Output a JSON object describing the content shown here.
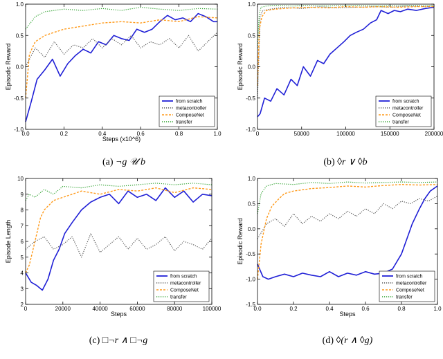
{
  "chart_data": [
    {
      "type": "line",
      "caption_id": "(a)",
      "caption_formula": "¬g 𝒰 b",
      "xlabel": "Steps (x10^6)",
      "ylabel": "Episodic Reward",
      "xlim": [
        0.0,
        1.0
      ],
      "ylim": [
        -1.0,
        1.0
      ],
      "xticks": [
        "0.0",
        "0.2",
        "0.4",
        "0.6",
        "0.8",
        "1.0"
      ],
      "xtick_values": [
        0.0,
        0.2,
        0.4,
        0.6,
        0.8,
        1.0
      ],
      "yticks": [
        "-1.0",
        "-0.5",
        "0.0",
        "0.5",
        "1.0"
      ],
      "ytick_values": [
        -1.0,
        -0.5,
        0.0,
        0.5,
        1.0
      ],
      "legend_position": "lower-right",
      "series": [
        {
          "name": "from scratch",
          "color": "#1f1fd6",
          "style": "solid",
          "x": [
            0,
            0.03,
            0.06,
            0.1,
            0.14,
            0.18,
            0.22,
            0.26,
            0.3,
            0.34,
            0.38,
            0.42,
            0.46,
            0.5,
            0.54,
            0.58,
            0.62,
            0.66,
            0.7,
            0.74,
            0.78,
            0.82,
            0.86,
            0.9,
            0.94,
            0.98,
            1.0
          ],
          "y": [
            -0.88,
            -0.55,
            -0.2,
            -0.05,
            0.12,
            -0.15,
            0.05,
            0.18,
            0.28,
            0.22,
            0.4,
            0.35,
            0.5,
            0.45,
            0.42,
            0.6,
            0.55,
            0.6,
            0.72,
            0.82,
            0.75,
            0.78,
            0.72,
            0.85,
            0.8,
            0.72,
            0.72
          ]
        },
        {
          "name": "metacontroller",
          "color": "#555555",
          "style": "dotted",
          "x": [
            0,
            0.05,
            0.1,
            0.15,
            0.2,
            0.25,
            0.3,
            0.35,
            0.4,
            0.45,
            0.5,
            0.55,
            0.6,
            0.65,
            0.7,
            0.75,
            0.8,
            0.85,
            0.9,
            0.95,
            1.0
          ],
          "y": [
            0.0,
            0.3,
            0.15,
            0.4,
            0.2,
            0.35,
            0.3,
            0.45,
            0.3,
            0.45,
            0.35,
            0.5,
            0.3,
            0.4,
            0.35,
            0.45,
            0.3,
            0.5,
            0.25,
            0.4,
            0.55
          ]
        },
        {
          "name": "ComposeNet",
          "color": "#ff9a1a",
          "style": "dashed",
          "x": [
            0,
            0.02,
            0.05,
            0.1,
            0.15,
            0.2,
            0.3,
            0.4,
            0.5,
            0.6,
            0.7,
            0.8,
            0.9,
            1.0
          ],
          "y": [
            -0.5,
            0.2,
            0.4,
            0.5,
            0.55,
            0.6,
            0.65,
            0.7,
            0.72,
            0.7,
            0.75,
            0.72,
            0.8,
            0.78
          ]
        },
        {
          "name": "transfer",
          "color": "#2ca02c",
          "style": "dotted",
          "x": [
            0,
            0.05,
            0.1,
            0.2,
            0.3,
            0.4,
            0.5,
            0.6,
            0.7,
            0.8,
            0.9,
            1.0
          ],
          "y": [
            0.6,
            0.8,
            0.88,
            0.92,
            0.9,
            0.93,
            0.9,
            0.95,
            0.92,
            0.9,
            0.93,
            0.92
          ]
        }
      ]
    },
    {
      "type": "line",
      "caption_id": "(b)",
      "caption_formula": "◊r ∨ ◊b",
      "xlabel": "",
      "ylabel": "Episodic Reward",
      "xlim": [
        0,
        200000
      ],
      "ylim": [
        -1.0,
        1.0
      ],
      "xticks": [
        "0",
        "50000",
        "100000",
        "150000",
        "200000"
      ],
      "xtick_values": [
        0,
        50000,
        100000,
        150000,
        200000
      ],
      "yticks": [
        "-1.0",
        "-0.5",
        "0.0",
        "0.5",
        "1.0"
      ],
      "ytick_values": [
        -1.0,
        -0.5,
        0.0,
        0.5,
        1.0
      ],
      "legend_position": "lower-right",
      "series": [
        {
          "name": "from scratch",
          "color": "#1f1fd6",
          "style": "solid",
          "x": [
            0,
            3000,
            8000,
            15000,
            22000,
            30000,
            38000,
            45000,
            52000,
            60000,
            68000,
            75000,
            82000,
            90000,
            98000,
            105000,
            112000,
            120000,
            128000,
            135000,
            140000,
            148000,
            155000,
            162000,
            170000,
            180000,
            190000,
            200000
          ],
          "y": [
            -0.8,
            -0.75,
            -0.5,
            -0.55,
            -0.35,
            -0.45,
            -0.2,
            -0.3,
            0.0,
            -0.15,
            0.1,
            0.05,
            0.2,
            0.3,
            0.4,
            0.5,
            0.55,
            0.6,
            0.7,
            0.75,
            0.9,
            0.85,
            0.9,
            0.88,
            0.92,
            0.9,
            0.93,
            0.95
          ]
        },
        {
          "name": "metacontroller",
          "color": "#555555",
          "style": "dotted",
          "x": [
            0,
            3000,
            6000,
            15000,
            30000,
            50000,
            70000,
            90000,
            110000,
            130000,
            150000,
            170000,
            190000,
            200000
          ],
          "y": [
            -0.5,
            0.8,
            0.9,
            0.92,
            0.95,
            0.93,
            0.96,
            0.94,
            0.95,
            0.96,
            0.95,
            0.97,
            0.96,
            0.97
          ]
        },
        {
          "name": "ComposeNet",
          "color": "#ff9a1a",
          "style": "dashed",
          "x": [
            0,
            2000,
            5000,
            10000,
            20000,
            40000,
            60000,
            80000,
            100000,
            120000,
            140000,
            160000,
            180000,
            200000
          ],
          "y": [
            -0.3,
            0.6,
            0.8,
            0.9,
            0.92,
            0.94,
            0.95,
            0.94,
            0.96,
            0.95,
            0.96,
            0.95,
            0.96,
            0.96
          ]
        },
        {
          "name": "transfer",
          "color": "#2ca02c",
          "style": "dotted",
          "x": [
            0,
            2000,
            4000,
            10000,
            20000,
            40000,
            60000,
            80000,
            100000,
            120000,
            140000,
            160000,
            180000,
            200000
          ],
          "y": [
            0.3,
            0.85,
            0.95,
            0.97,
            0.98,
            0.97,
            0.98,
            0.97,
            0.98,
            0.98,
            0.97,
            0.98,
            0.98,
            0.98
          ]
        }
      ]
    },
    {
      "type": "line",
      "caption_id": "(c)",
      "caption_formula": "□¬r ∧ □¬g",
      "xlabel": "Steps",
      "ylabel": "Episode Length",
      "xlim": [
        0,
        100000
      ],
      "ylim": [
        2,
        10
      ],
      "xticks": [
        "0",
        "20000",
        "40000",
        "60000",
        "80000",
        "100000"
      ],
      "xtick_values": [
        0,
        20000,
        40000,
        60000,
        80000,
        100000
      ],
      "yticks": [
        "2",
        "3",
        "4",
        "5",
        "6",
        "7",
        "8",
        "9",
        "10"
      ],
      "ytick_values": [
        2,
        3,
        4,
        5,
        6,
        7,
        8,
        9,
        10
      ],
      "legend_position": "lower-right",
      "series": [
        {
          "name": "from scratch",
          "color": "#1f1fd6",
          "style": "solid",
          "x": [
            0,
            3000,
            6000,
            9000,
            12000,
            15000,
            18000,
            21000,
            25000,
            30000,
            35000,
            40000,
            45000,
            50000,
            55000,
            60000,
            65000,
            70000,
            75000,
            80000,
            85000,
            90000,
            95000,
            100000
          ],
          "y": [
            4.0,
            3.4,
            3.2,
            2.9,
            3.6,
            4.8,
            5.5,
            6.5,
            7.2,
            8.0,
            8.5,
            8.8,
            9.0,
            8.4,
            9.2,
            8.8,
            9.0,
            8.6,
            9.4,
            8.8,
            9.2,
            8.5,
            9.0,
            8.9
          ]
        },
        {
          "name": "metacontroller",
          "color": "#555555",
          "style": "dotted",
          "x": [
            0,
            5000,
            10000,
            15000,
            20000,
            25000,
            30000,
            35000,
            40000,
            45000,
            50000,
            55000,
            60000,
            65000,
            70000,
            75000,
            80000,
            85000,
            90000,
            95000,
            100000
          ],
          "y": [
            5.5,
            6.0,
            6.3,
            5.5,
            5.8,
            6.3,
            5.0,
            6.5,
            5.3,
            5.8,
            6.3,
            5.5,
            6.2,
            5.5,
            5.8,
            6.3,
            5.4,
            6.0,
            5.8,
            5.5,
            6.2
          ]
        },
        {
          "name": "ComposeNet",
          "color": "#ff9a1a",
          "style": "dashed",
          "x": [
            0,
            2000,
            5000,
            8000,
            10000,
            15000,
            20000,
            30000,
            40000,
            50000,
            60000,
            70000,
            80000,
            90000,
            100000
          ],
          "y": [
            4.0,
            4.5,
            6.0,
            7.5,
            8.0,
            8.6,
            8.8,
            9.2,
            9.0,
            9.3,
            9.2,
            9.4,
            9.1,
            9.4,
            9.3
          ]
        },
        {
          "name": "transfer",
          "color": "#2ca02c",
          "style": "dotted",
          "x": [
            0,
            2000,
            5000,
            10000,
            15000,
            20000,
            30000,
            40000,
            50000,
            60000,
            70000,
            80000,
            90000,
            100000
          ],
          "y": [
            8.6,
            9.0,
            8.8,
            9.3,
            9.0,
            9.5,
            9.4,
            9.6,
            9.5,
            9.6,
            9.7,
            9.6,
            9.7,
            9.6
          ]
        }
      ]
    },
    {
      "type": "line",
      "caption_id": "(d)",
      "caption_formula": "◊(r ∧ ◊g)",
      "xlabel": "Steps",
      "ylabel": "Episodic Reward",
      "xlim": [
        0.0,
        1.0
      ],
      "ylim": [
        -1.5,
        1.0
      ],
      "xticks": [
        "0.0",
        "0.2",
        "0.4",
        "0.6",
        "0.8",
        "1.0"
      ],
      "xtick_values": [
        0.0,
        0.2,
        0.4,
        0.6,
        0.8,
        1.0
      ],
      "yticks": [
        "-1.5",
        "-1.0",
        "-0.5",
        "0.0",
        "0.5",
        "1.0"
      ],
      "ytick_values": [
        -1.5,
        -1.0,
        -0.5,
        0.0,
        0.5,
        1.0
      ],
      "legend_position": "lower-right",
      "series": [
        {
          "name": "from scratch",
          "color": "#1f1fd6",
          "style": "solid",
          "x": [
            0,
            0.03,
            0.06,
            0.1,
            0.15,
            0.2,
            0.25,
            0.3,
            0.35,
            0.4,
            0.45,
            0.5,
            0.55,
            0.6,
            0.65,
            0.7,
            0.75,
            0.8,
            0.83,
            0.86,
            0.9,
            0.93,
            0.96,
            1.0
          ],
          "y": [
            -0.7,
            -0.95,
            -1.0,
            -0.95,
            -0.9,
            -0.95,
            -0.88,
            -0.92,
            -0.95,
            -0.85,
            -0.95,
            -0.88,
            -0.92,
            -0.85,
            -0.9,
            -0.88,
            -0.8,
            -0.5,
            -0.2,
            0.1,
            0.4,
            0.6,
            0.75,
            0.85
          ]
        },
        {
          "name": "metacontroller",
          "color": "#555555",
          "style": "dotted",
          "x": [
            0,
            0.05,
            0.1,
            0.15,
            0.2,
            0.25,
            0.3,
            0.35,
            0.4,
            0.45,
            0.5,
            0.55,
            0.6,
            0.65,
            0.7,
            0.75,
            0.8,
            0.85,
            0.9,
            0.95,
            1.0
          ],
          "y": [
            -0.2,
            0.1,
            0.2,
            0.05,
            0.3,
            0.1,
            0.25,
            0.15,
            0.3,
            0.2,
            0.35,
            0.25,
            0.4,
            0.3,
            0.5,
            0.4,
            0.55,
            0.5,
            0.6,
            0.55,
            0.65
          ]
        },
        {
          "name": "ComposeNet",
          "color": "#ff9a1a",
          "style": "dashed",
          "x": [
            0,
            0.02,
            0.05,
            0.08,
            0.12,
            0.15,
            0.2,
            0.3,
            0.4,
            0.5,
            0.6,
            0.7,
            0.8,
            0.9,
            1.0
          ],
          "y": [
            -1.0,
            -0.3,
            0.2,
            0.45,
            0.6,
            0.7,
            0.75,
            0.8,
            0.82,
            0.85,
            0.83,
            0.86,
            0.88,
            0.87,
            0.88
          ]
        },
        {
          "name": "transfer",
          "color": "#2ca02c",
          "style": "dotted",
          "x": [
            0,
            0.02,
            0.05,
            0.1,
            0.2,
            0.3,
            0.4,
            0.5,
            0.6,
            0.7,
            0.8,
            0.9,
            1.0
          ],
          "y": [
            0.3,
            0.7,
            0.85,
            0.9,
            0.88,
            0.92,
            0.9,
            0.93,
            0.91,
            0.92,
            0.93,
            0.92,
            0.93
          ]
        }
      ]
    }
  ]
}
